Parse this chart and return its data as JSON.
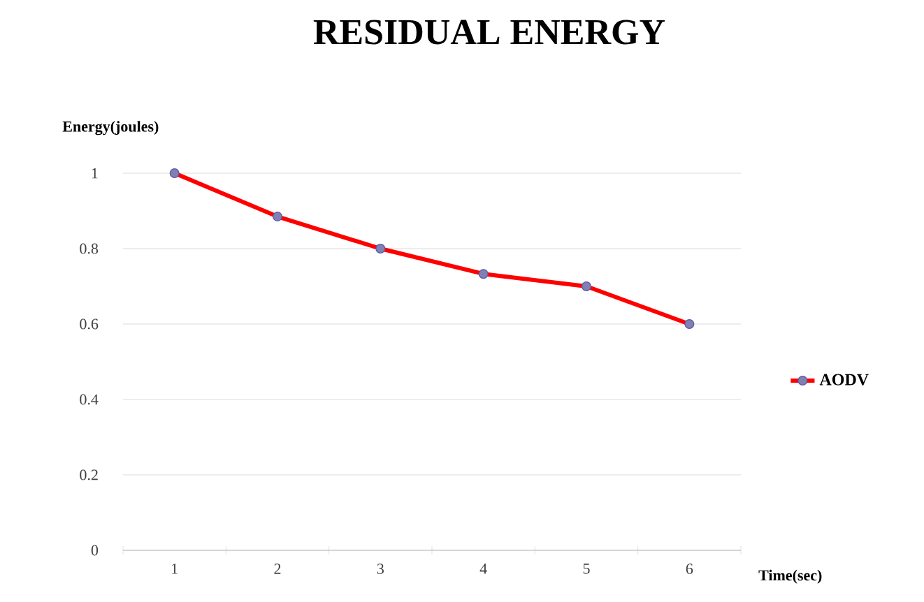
{
  "chart_data": {
    "type": "line",
    "title": "RESIDUAL ENERGY",
    "xlabel": "Time(sec)",
    "ylabel": "Energy(joules)",
    "categories": [
      "1",
      "2",
      "3",
      "4",
      "5",
      "6"
    ],
    "series": [
      {
        "name": "AODV",
        "color": "#ff0000",
        "values": [
          1,
          0.885,
          0.8,
          0.733,
          0.7,
          0.6
        ]
      }
    ],
    "ylim": [
      0,
      1
    ],
    "yticks": [
      0,
      0.2,
      0.4,
      0.6,
      0.8,
      1
    ],
    "grid": "y",
    "legend": "right",
    "marker": "circle",
    "line_style": "solid"
  }
}
